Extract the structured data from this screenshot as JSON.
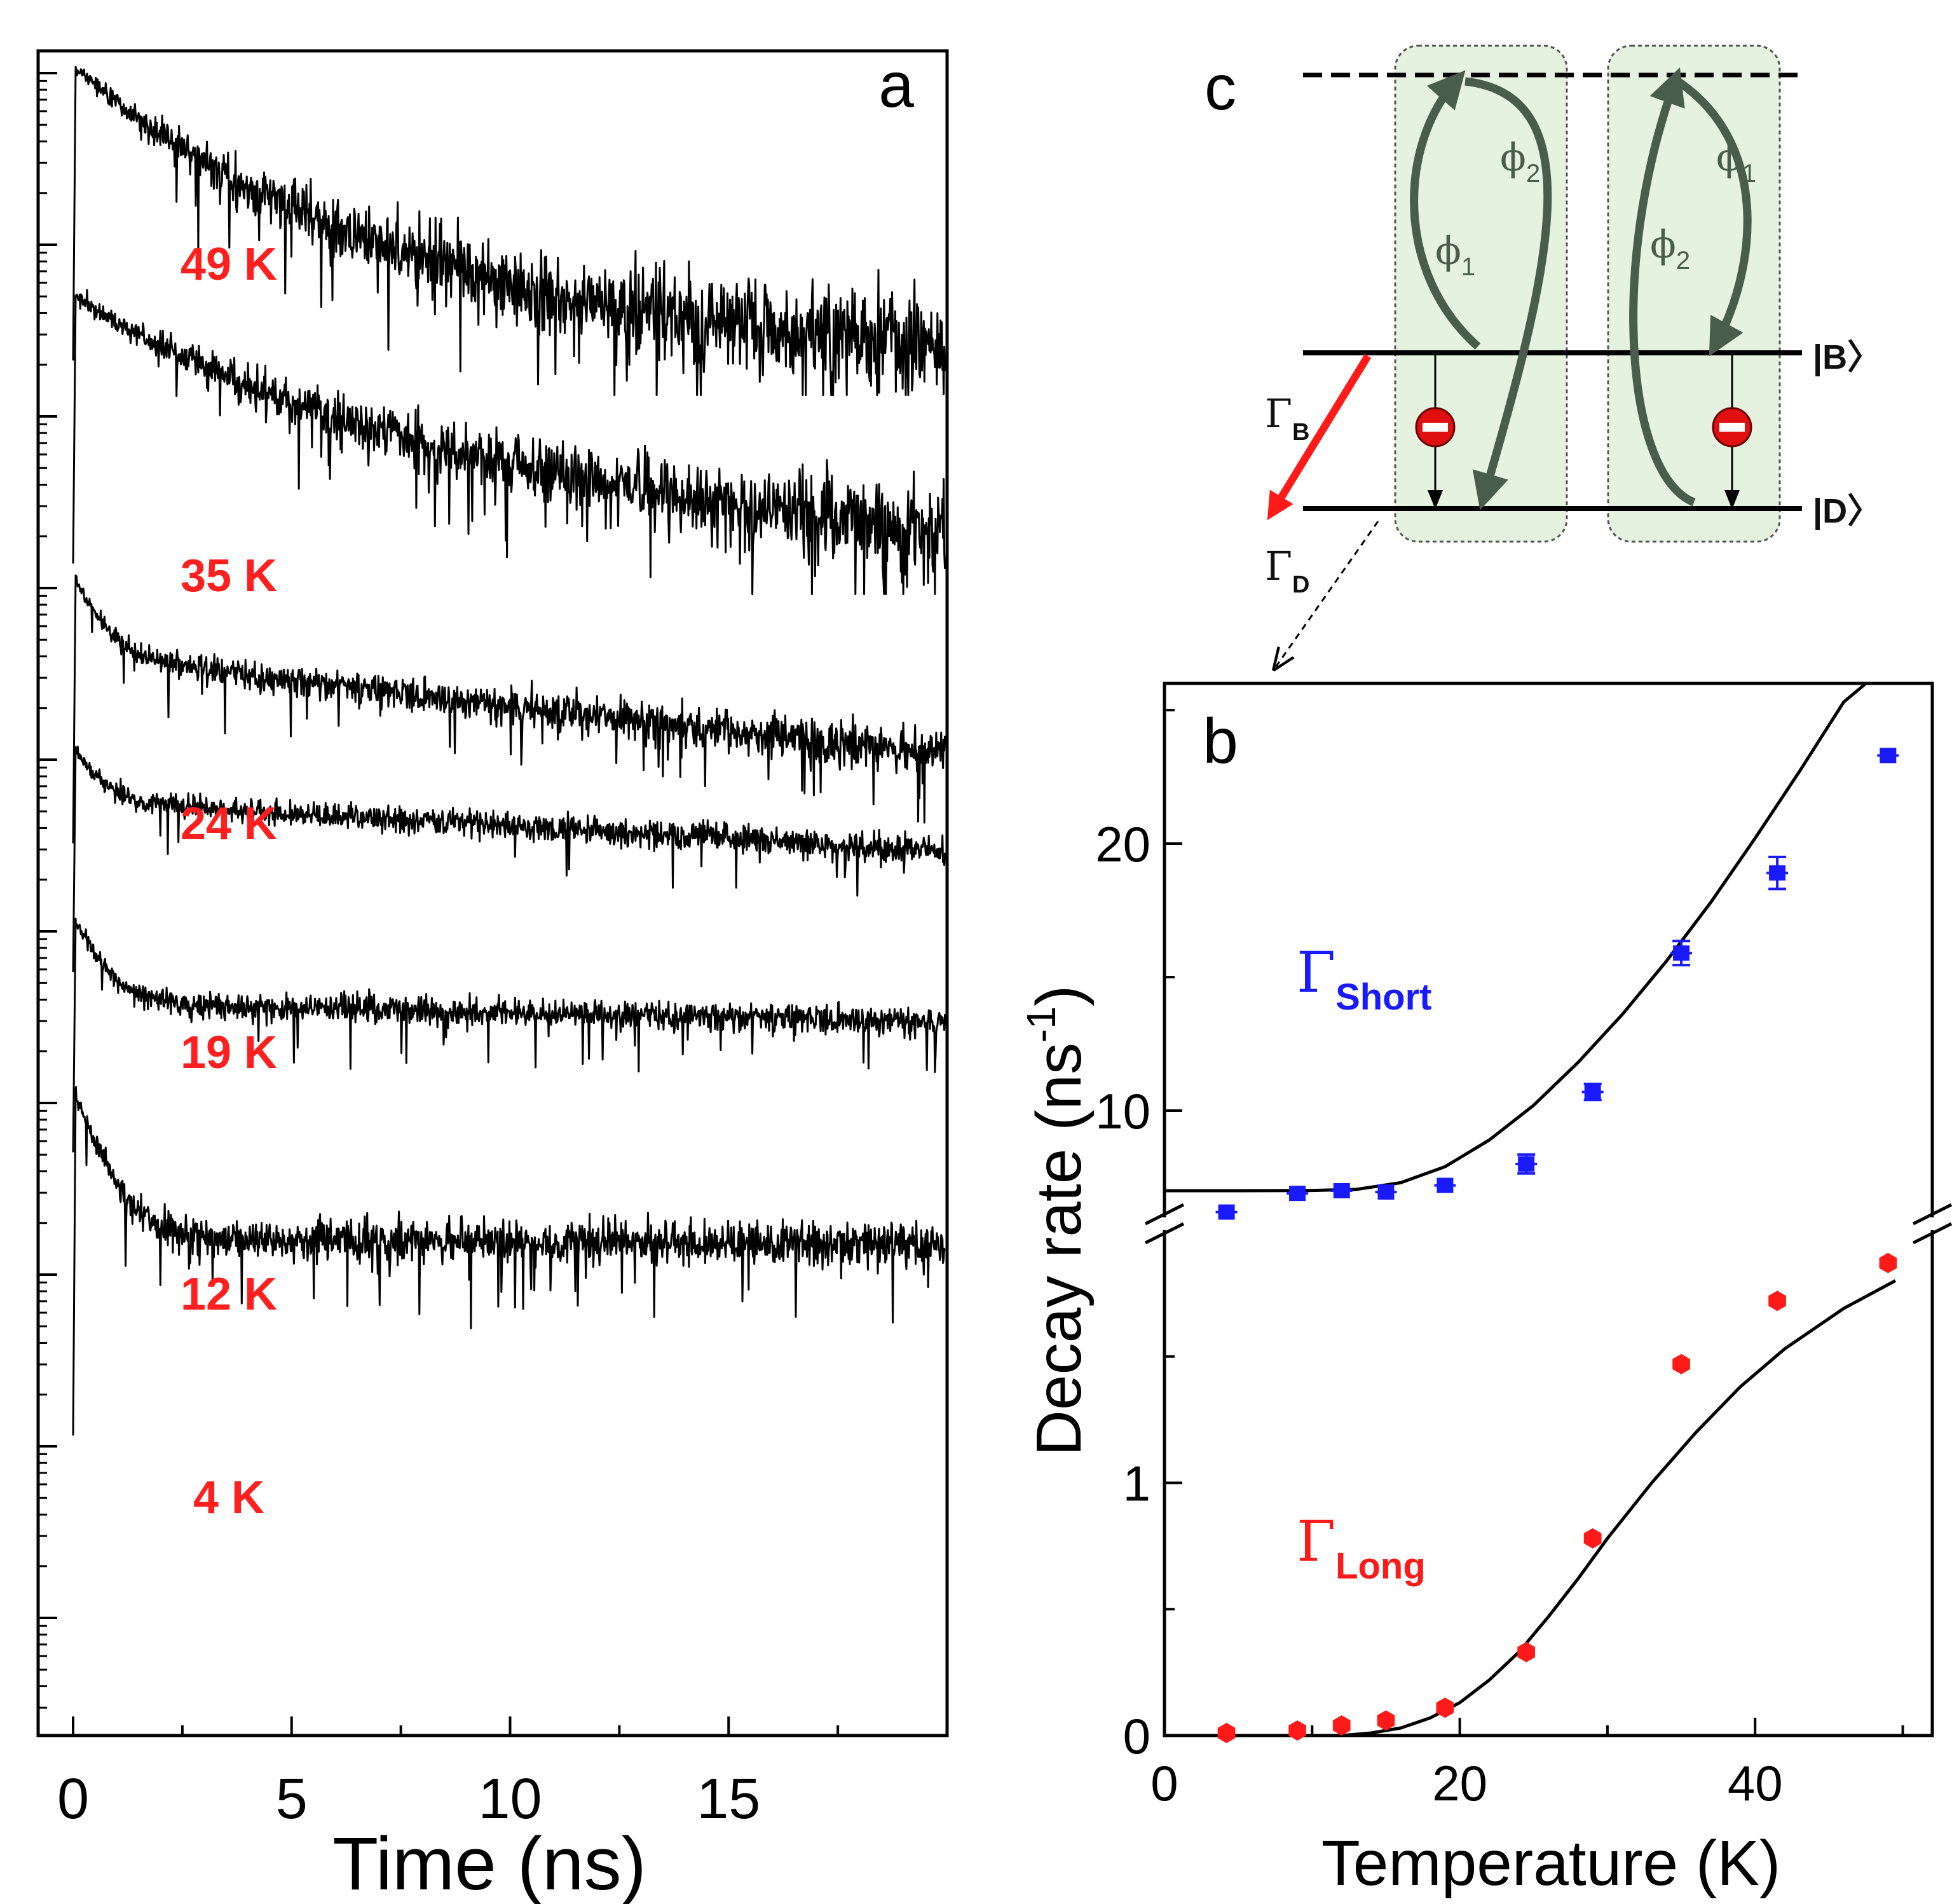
{
  "colors": {
    "temp_label": "#ff1f1f",
    "short_series": "#1a1aff",
    "long_series": "#ff1a1a",
    "box_fill": "#e4f2df",
    "arrow_green": "#4a5c4a",
    "red_arrow": "#ff1a1a"
  },
  "chart_data": [
    {
      "panel": "a",
      "type": "line",
      "panel_label": "a",
      "xlabel": "Time (ns)",
      "xlim": [
        -0.8,
        20
      ],
      "xticks": [
        "0",
        "5",
        "10",
        "15"
      ],
      "xtick_values": [
        0,
        5,
        10,
        15
      ],
      "yscale": "log (offset traces, unlabeled)",
      "series": [
        {
          "name": "49 K",
          "label": "49 K",
          "fast_decay_ns": 1.1,
          "slow_decay_ns": 3.0
        },
        {
          "name": "35 K",
          "label": "35 K",
          "fast_decay_ns": 1.35,
          "slow_decay_ns": 4.0
        },
        {
          "name": "24 K",
          "label": "24 K",
          "fast_decay_ns": 0.45,
          "slow_decay_ns": 8.0
        },
        {
          "name": "19 K",
          "label": "19 K",
          "fast_decay_ns": 0.45,
          "slow_decay_ns": 14.0
        },
        {
          "name": "12 K",
          "label": "12 K",
          "fast_decay_ns": 0.45,
          "slow_decay_ns": 40.0
        },
        {
          "name": "4 K",
          "label": "4 K",
          "fast_decay_ns": 0.5,
          "slow_decay_ns": 200.0
        }
      ]
    },
    {
      "panel": "b",
      "type": "scatter",
      "panel_label": "b",
      "xlabel": "Temperature (K)",
      "ylabel_main": "Decay rate (ns",
      "ylabel_sup": "-1",
      "ylabel_close": ")",
      "xlim": [
        0,
        52
      ],
      "xticks": [
        "0",
        "20",
        "40"
      ],
      "xtick_values": [
        0,
        20,
        40
      ],
      "upper_ylim": [
        6.0,
        26.0
      ],
      "upper_yticks": [
        "10",
        "20"
      ],
      "upper_ytick_values": [
        10,
        20
      ],
      "lower_ylim": [
        0,
        2.0
      ],
      "lower_yticks": [
        "0",
        "1"
      ],
      "lower_ytick_values": [
        0,
        1
      ],
      "series": [
        {
          "name": "Γ Short",
          "symbol": "Γ",
          "subscript": "Short",
          "x": [
            4.2,
            9,
            12,
            15,
            19,
            24.5,
            29,
            35,
            41.5,
            49
          ],
          "y": [
            6.2,
            6.9,
            7.0,
            6.95,
            7.2,
            8.0,
            10.7,
            15.9,
            18.9,
            23.3
          ],
          "yerr": [
            0.2,
            0.2,
            0.25,
            0.25,
            0.25,
            0.35,
            0.3,
            0.45,
            0.6,
            0.2
          ]
        },
        {
          "name": "Γ Long",
          "symbol": "Γ",
          "subscript": "Long",
          "x": [
            4.2,
            9,
            12,
            15,
            19,
            24.5,
            29,
            35,
            41.5,
            49
          ],
          "y": [
            0.01,
            0.02,
            0.04,
            0.06,
            0.11,
            0.33,
            0.78,
            1.47,
            1.72,
            1.87
          ],
          "yerr": [
            0.01,
            0.01,
            0.015,
            0.015,
            0.02,
            0.03,
            0.03,
            0.02,
            0.02,
            0.02
          ]
        }
      ],
      "fits": [
        {
          "name": "Short fit",
          "x": [
            0,
            5,
            10,
            13,
            16,
            19,
            22,
            25,
            28,
            31,
            34,
            37,
            40,
            43,
            46,
            47.5
          ],
          "y": [
            7.0,
            7.0,
            7.01,
            7.05,
            7.3,
            7.9,
            8.9,
            10.2,
            11.8,
            13.6,
            15.6,
            17.8,
            20.2,
            22.7,
            25.3,
            26.0
          ]
        },
        {
          "name": "Long fit",
          "x": [
            12,
            14,
            16,
            18,
            20,
            22,
            24,
            26,
            28,
            30,
            33,
            36,
            39,
            42,
            46,
            49.5
          ],
          "y": [
            0.0,
            0.01,
            0.03,
            0.07,
            0.13,
            0.22,
            0.33,
            0.47,
            0.62,
            0.78,
            1.0,
            1.2,
            1.38,
            1.53,
            1.69,
            1.8
          ]
        }
      ]
    }
  ],
  "diagram": {
    "panel_label": "c",
    "state_bright": "B",
    "state_dark": "D",
    "gamma_b": {
      "symbol": "Γ",
      "sub": "B"
    },
    "gamma_d": {
      "symbol": "Γ",
      "sub": "D"
    },
    "box1": {
      "upper_phi": {
        "symbol": "ϕ",
        "sub": "2"
      },
      "lower_phi": {
        "symbol": "ϕ",
        "sub": "1"
      }
    },
    "box2": {
      "upper_phi": {
        "symbol": "ϕ",
        "sub": "1"
      },
      "lower_phi": {
        "symbol": "ϕ",
        "sub": "2"
      }
    }
  }
}
